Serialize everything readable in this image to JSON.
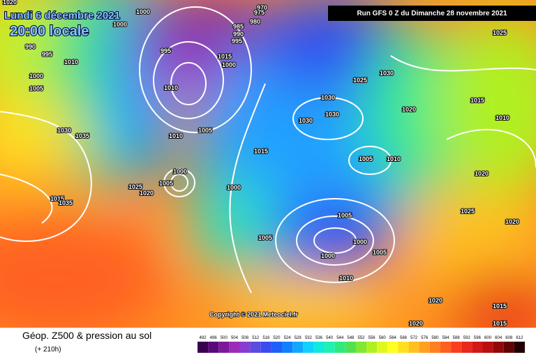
{
  "header": {
    "date": "Lundi 6 décembre 2021",
    "time": "20:00 locale",
    "run": "Run GFS 0 Z du Dimanche 28 novembre 2021"
  },
  "copyright": "Copyright © 2021 Meteociel.fr",
  "footer": {
    "title": "Géop. Z500 & pression au sol",
    "subtitle": "(+ 210h)"
  },
  "isobar_labels": [
    "1020",
    "1000",
    "1000",
    "990",
    "995",
    "1010",
    "1000",
    "1005",
    "1030",
    "1035",
    "1015",
    "1035",
    "995",
    "970",
    "975",
    "980",
    "985",
    "990",
    "995",
    "1010",
    "1015",
    "1000",
    "1010",
    "1005",
    "1025",
    "1020",
    "1000",
    "1005",
    "1000",
    "1015",
    "1030",
    "1030",
    "1030",
    "1025",
    "1030",
    "1020",
    "1015",
    "1010",
    "1025",
    "1020",
    "1025",
    "1020",
    "1005",
    "1010",
    "1005",
    "1005",
    "1000",
    "1005",
    "1000",
    "1010",
    "1020",
    "1020",
    "1015",
    "1015"
  ],
  "legend": {
    "ticks": [
      492,
      496,
      500,
      504,
      508,
      512,
      516,
      520,
      524,
      528,
      532,
      536,
      540,
      544,
      548,
      552,
      556,
      560,
      564,
      568,
      572,
      576,
      580,
      584,
      588,
      592,
      596,
      600,
      604,
      608,
      612
    ],
    "colors": [
      "#3c0050",
      "#5a0a78",
      "#7a1a9a",
      "#9b2cb8",
      "#8a3cd0",
      "#5a4ce0",
      "#3a4cf0",
      "#2060f8",
      "#1080ff",
      "#10a8ff",
      "#10d0ff",
      "#10e8e0",
      "#20f0b0",
      "#30e880",
      "#50e050",
      "#80e830",
      "#b0f020",
      "#e0f820",
      "#ffff20",
      "#ffe020",
      "#ffc020",
      "#ffa020",
      "#ff8020",
      "#ff6020",
      "#f84020",
      "#e82818",
      "#d01818",
      "#b81010",
      "#900808",
      "#600404",
      "#200000"
    ]
  }
}
